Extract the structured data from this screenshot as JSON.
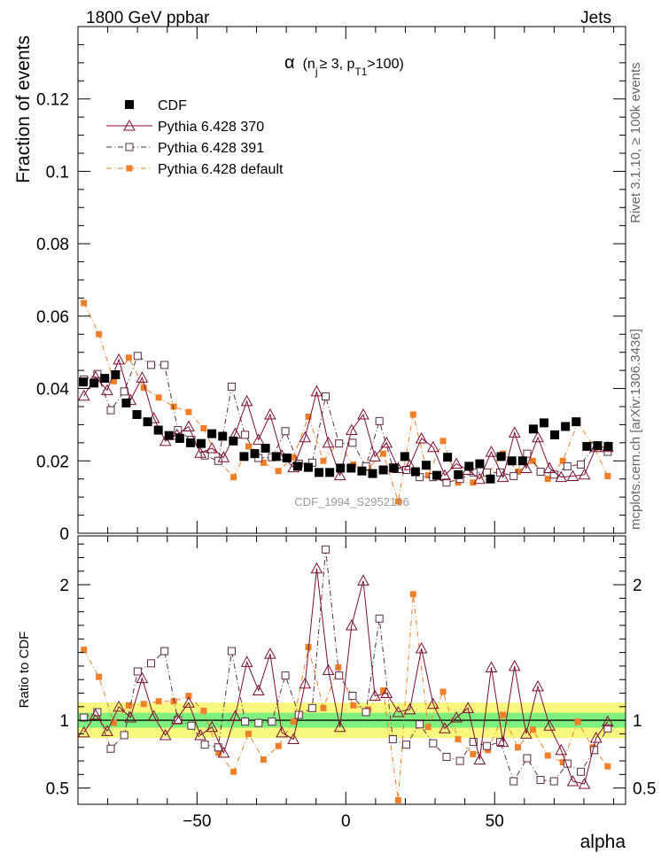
{
  "header": {
    "left": "1800 GeV ppbar",
    "right": "Jets",
    "side_top": "Rivet 3.1.10, ≥ 100k events",
    "side_bottom": "mcplots.cern.ch [arXiv:1306.3436]",
    "watermark": "CDF_1994_S2952106"
  },
  "chart_data": [
    {
      "type": "scatter",
      "title": "α (n_j ≥ 3, p_T1>100)",
      "title_parts": {
        "alpha": "α",
        "open": "(n",
        "sub_j": "j",
        "geq": "≥ 3, p",
        "sub_t1": "T1",
        "close": ">100)"
      },
      "xlabel": "alpha",
      "ylabel": "Fraction of events",
      "xlim": [
        -90,
        94
      ],
      "ylim": [
        0,
        0.14
      ],
      "yticks": [
        0,
        0.02,
        0.04,
        0.06,
        0.08,
        0.1,
        0.12
      ],
      "ytick_labels": [
        "0",
        "0.02",
        "0.04",
        "0.06",
        "0.08",
        "0.1",
        "0.12"
      ],
      "legend_position": "top-left",
      "x": [
        -88.2,
        -84.6,
        -81.0,
        -77.4,
        -73.8,
        -70.2,
        -66.6,
        -63.0,
        -59.4,
        -55.8,
        -52.2,
        -48.6,
        -45.0,
        -41.4,
        -37.8,
        -34.2,
        -30.6,
        -27.0,
        -23.4,
        -19.8,
        -16.2,
        -12.6,
        -9.0,
        -5.4,
        -1.8,
        1.8,
        5.4,
        9.0,
        12.6,
        16.2,
        19.8,
        23.4,
        27.0,
        30.6,
        34.2,
        37.8,
        41.4,
        45.0,
        48.6,
        52.2,
        55.8,
        59.4,
        63.0,
        66.6,
        70.2,
        73.8,
        77.4,
        81.0,
        84.6,
        88.2
      ],
      "series": [
        {
          "name": "CDF",
          "color": "#000000",
          "marker": "filled-square",
          "values": [
            0.0418,
            0.0415,
            0.0428,
            0.0438,
            0.036,
            0.0328,
            0.0308,
            0.0285,
            0.027,
            0.0262,
            0.025,
            0.0248,
            0.0275,
            0.0268,
            0.0255,
            0.0212,
            0.022,
            0.0235,
            0.0212,
            0.0208,
            0.0185,
            0.0182,
            0.0168,
            0.0168,
            0.018,
            0.018,
            0.0172,
            0.0165,
            0.0175,
            0.018,
            0.0212,
            0.017,
            0.0188,
            0.016,
            0.021,
            0.0162,
            0.0185,
            0.0192,
            0.015,
            0.0212,
            0.02,
            0.02,
            0.0288,
            0.0305,
            0.0272,
            0.0295,
            0.0308,
            0.024,
            0.0242,
            0.024
          ]
        },
        {
          "name": "Pythia 6.428 370",
          "color": "#7a0f2e",
          "marker": "open-triangle",
          "line": "solid",
          "values": [
            0.038,
            0.0432,
            0.0395,
            0.048,
            0.0368,
            0.043,
            0.0318,
            0.0255,
            0.0272,
            0.0295,
            0.0222,
            0.0235,
            0.021,
            0.0275,
            0.0365,
            0.0258,
            0.0328,
            0.0215,
            0.0182,
            0.0265,
            0.0392,
            0.025,
            0.016,
            0.0285,
            0.0328,
            0.0212,
            0.025,
            0.018,
            0.0188,
            0.0262,
            0.0238,
            0.016,
            0.0192,
            0.0175,
            0.015,
            0.0225,
            0.0155,
            0.0278,
            0.018,
            0.0265,
            0.018,
            0.0155,
            0.0158,
            0.0162,
            0.0238,
            0.0238
          ]
        },
        {
          "name": "Pythia 6.428 391",
          "color": "#5a2a45",
          "marker": "open-square",
          "line": "dashdot",
          "values": [
            0.0425,
            0.044,
            0.034,
            0.0392,
            0.049,
            0.0465,
            0.0465,
            0.0285,
            0.0258,
            0.0215,
            0.02,
            0.0405,
            0.0272,
            0.0208,
            0.021,
            0.0282,
            0.0192,
            0.0195,
            0.0378,
            0.0248,
            0.025,
            0.0185,
            0.031,
            0.0182,
            0.0175,
            0.0155,
            0.0155,
            0.014,
            0.015,
            0.0168,
            0.0168,
            0.0168,
            0.0158,
            0.022,
            0.017,
            0.0162,
            0.0185,
            0.019,
            0.024,
            0.0225
          ]
        },
        {
          "name": "Pythia 6.428 default",
          "color": "#f07f2a",
          "marker": "filled-small-square",
          "line": "dashdot",
          "values": [
            0.0636,
            0.055,
            0.042,
            0.0485,
            0.0402,
            0.0375,
            0.035,
            0.0335,
            0.029,
            0.02,
            0.0155,
            0.024,
            0.0195,
            0.0172,
            0.021,
            0.0322,
            0.02,
            0.025,
            0.019,
            0.018,
            0.022,
            0.0088,
            0.0328,
            0.016,
            0.0255,
            0.014,
            0.014,
            0.0165,
            0.022,
            0.017,
            0.02,
            0.015,
            0.02,
            0.0305,
            0.0245,
            0.0158
          ]
        }
      ]
    },
    {
      "type": "scatter",
      "title": "",
      "xlabel": "alpha",
      "ylabel": "Ratio to CDF",
      "xlim": [
        -90,
        94
      ],
      "ylim": [
        0.38,
        2.36
      ],
      "yticks": [
        0.5,
        1,
        2
      ],
      "ytick_labels": [
        "0.5",
        "1",
        "2"
      ],
      "xticks": [
        -50,
        0,
        50
      ],
      "xtick_labels": [
        "−50",
        "0",
        "50"
      ],
      "bands": {
        "stat_color": "#7ef07e",
        "total_color": "#f9f87e",
        "stat_halfwidth": 0.055,
        "total_halfwidth": 0.13
      },
      "series": [
        {
          "name": "Pythia 6.428 370",
          "values": [
            0.91,
            1.04,
            0.92,
            1.1,
            1.02,
            1.31,
            1.03,
            0.89,
            1.01,
            1.13,
            0.89,
            0.95,
            0.76,
            1.03,
            1.43,
            1.22,
            1.49,
            0.91,
            0.86,
            1.27,
            2.12,
            1.37,
            0.95,
            1.7,
            2.03,
            1.18,
            1.2,
            1.06,
            1.08,
            1.53,
            1.12,
            0.94,
            1.02,
            1.09,
            0.71,
            1.39,
            0.84,
            1.4,
            0.9,
            1.25,
            0.96,
            0.78,
            0.55,
            0.53,
            0.87,
            0.99
          ]
        },
        {
          "name": "Pythia 6.428 391",
          "values": [
            1.02,
            1.06,
            0.79,
            0.89,
            1.36,
            1.42,
            1.51,
            1.0,
            0.96,
            0.82,
            0.8,
            1.51,
            0.99,
            0.98,
            0.99,
            1.33,
            1.04,
            1.09,
            2.26,
            1.33,
            1.18,
            1.06,
            1.75,
            0.86,
            0.82,
            0.97,
            0.83,
            0.73,
            0.7,
            0.84,
            0.81,
            0.84,
            0.55,
            0.72,
            0.56,
            0.55,
            0.68,
            0.62,
            0.78,
            0.94
          ]
        },
        {
          "name": "Pythia 6.428 default",
          "values": [
            1.52,
            1.32,
            0.98,
            1.11,
            1.12,
            1.14,
            1.14,
            1.18,
            1.07,
            0.76,
            0.62,
            0.9,
            0.71,
            0.81,
            0.99,
            1.54,
            1.09,
            1.39,
            1.11,
            1.08,
            1.22,
            0.41,
            1.93,
            0.95,
            1.21,
            0.86,
            0.75,
            0.78,
            1.04,
            0.8,
            0.93,
            0.74,
            0.69,
            0.99,
            0.8,
            0.66
          ]
        }
      ]
    }
  ]
}
